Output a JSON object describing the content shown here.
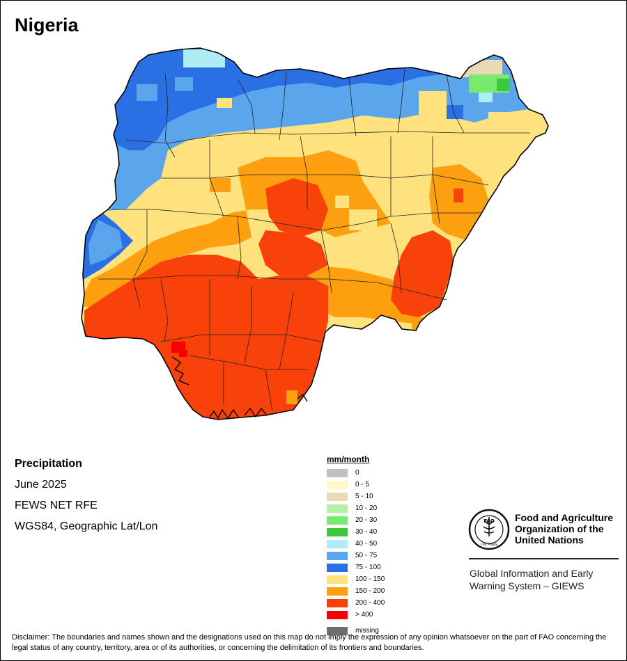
{
  "title": "Nigeria",
  "info": {
    "variable": "Precipitation",
    "period": "June 2025",
    "source": "FEWS NET RFE",
    "projection": "WGS84, Geographic Lat/Lon"
  },
  "legend": {
    "unit": "mm/month",
    "classes": [
      {
        "label": "0",
        "color": "#c0c0c0"
      },
      {
        "label": "0 - 5",
        "color": "#fff8c8"
      },
      {
        "label": "5 - 10",
        "color": "#ebd9b6"
      },
      {
        "label": "10 - 20",
        "color": "#b4f0a8"
      },
      {
        "label": "20 - 30",
        "color": "#78ea6e"
      },
      {
        "label": "30 - 40",
        "color": "#3cc83c"
      },
      {
        "label": "40 - 50",
        "color": "#b0ecf4"
      },
      {
        "label": "50 - 75",
        "color": "#5aa5ec"
      },
      {
        "label": "75 - 100",
        "color": "#2a6fe4"
      },
      {
        "label": "100 - 150",
        "color": "#fde27e"
      },
      {
        "label": "150 - 200",
        "color": "#fda010"
      },
      {
        "label": "200 - 400",
        "color": "#f8420a"
      },
      {
        "label": "> 400",
        "color": "#f80000"
      }
    ],
    "missing": {
      "label": "missing",
      "color": "#6e6e6e"
    }
  },
  "organization": {
    "name_lines": [
      "Food and Agriculture",
      "Organization of the",
      "United Nations"
    ],
    "logo_text": "FAO",
    "logo_motto": "FIAT PANIS",
    "system_lines": [
      "Global Information and Early",
      "Warning System – GIEWS"
    ]
  },
  "disclaimer": "Disclaimer: The boundaries and names shown and the designations used on this map do not imply the expression of any opinion whatsoever on the part of FAO concerning the legal status of any country, territory, area or of its authorities, or concerning the delimitation of its frontiers and boundaries."
}
